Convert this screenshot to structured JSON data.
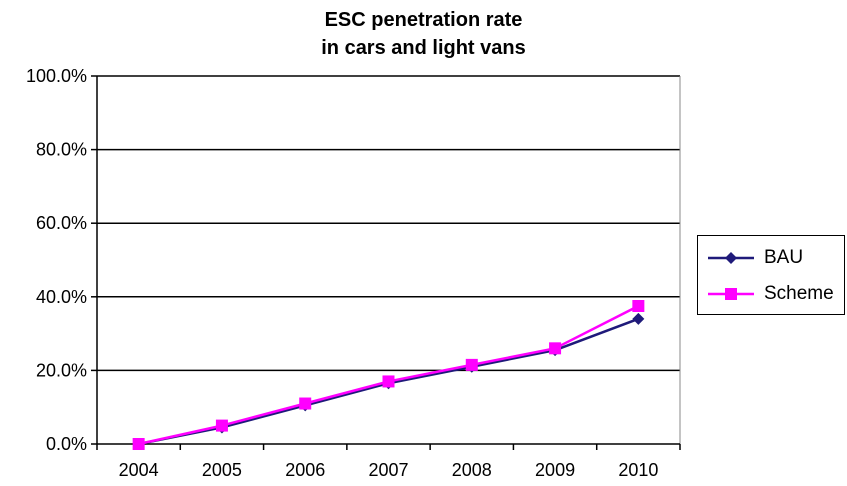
{
  "chart_data": {
    "type": "line",
    "title_lines": [
      "ESC penetration rate",
      "in cars and light vans"
    ],
    "x": [
      "2004",
      "2005",
      "2006",
      "2007",
      "2008",
      "2009",
      "2010"
    ],
    "y_ticks": [
      "0.0%",
      "20.0%",
      "40.0%",
      "60.0%",
      "80.0%",
      "100.0%"
    ],
    "ylim": [
      0,
      100
    ],
    "grid": "horizontal",
    "legend_position": "right",
    "series": [
      {
        "name": "BAU",
        "color": "#1f1a7a",
        "marker": "diamond",
        "values": [
          0,
          4.5,
          10.5,
          16.5,
          21,
          25.5,
          34
        ]
      },
      {
        "name": "Scheme",
        "color": "#ff00ff",
        "marker": "square",
        "values": [
          0,
          5,
          11,
          17,
          21.5,
          26,
          37.5
        ]
      }
    ]
  }
}
